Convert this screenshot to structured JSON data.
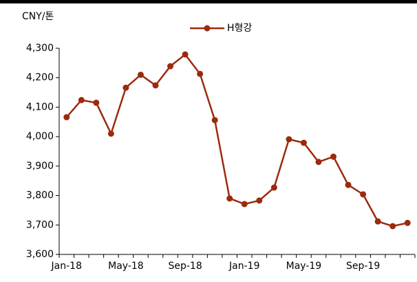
{
  "chart_data": {
    "type": "line",
    "y_label": "CNY/톤",
    "categories": [
      "Jan-18",
      null,
      null,
      null,
      "May-18",
      null,
      null,
      null,
      "Sep-18",
      null,
      null,
      null,
      "Jan-19",
      null,
      null,
      null,
      "May-19",
      null,
      null,
      null,
      "Sep-19",
      null,
      null,
      null
    ],
    "series": [
      {
        "name": "H형강",
        "color": "#9c2a0e",
        "values": [
          4066,
          4124,
          4115,
          4010,
          4166,
          4210,
          4174,
          4239,
          4279,
          4213,
          4056,
          3790,
          3771,
          3783,
          3827,
          3991,
          3979,
          3914,
          3932,
          3836,
          3804,
          3712,
          3696,
          3707
        ]
      }
    ],
    "ylim": [
      3600,
      4300
    ],
    "yticks": [
      {
        "value": 3600,
        "label": "3,600"
      },
      {
        "value": 3700,
        "label": "3,700"
      },
      {
        "value": 3800,
        "label": "3,800"
      },
      {
        "value": 3900,
        "label": "3,900"
      },
      {
        "value": 4000,
        "label": "4,000"
      },
      {
        "value": 4100,
        "label": "4,100"
      },
      {
        "value": 4200,
        "label": "4,200"
      },
      {
        "value": 4300,
        "label": "4,300"
      }
    ]
  }
}
